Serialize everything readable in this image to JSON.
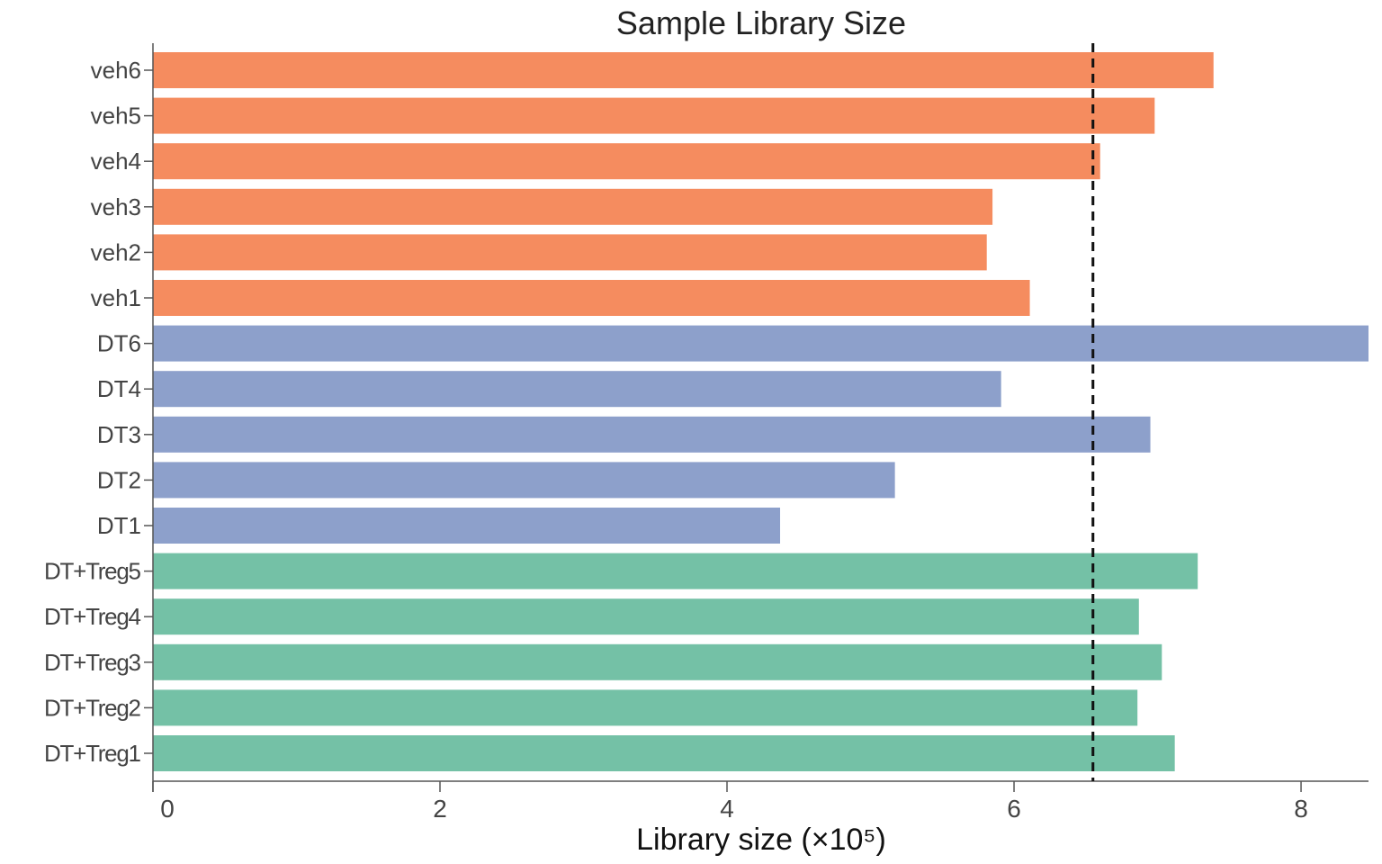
{
  "chart_data": {
    "type": "bar",
    "orientation": "horizontal",
    "title": "Sample Library Size",
    "xlabel": "Library size (×10⁵)",
    "ylabel": "",
    "xlim": [
      0,
      8.47
    ],
    "xticks": [
      "0",
      "2",
      "4",
      "6",
      "8"
    ],
    "grid": false,
    "legend": "none",
    "categories": [
      "veh6",
      "veh5",
      "veh4",
      "veh3",
      "veh2",
      "veh1",
      "DT6",
      "DT4",
      "DT3",
      "DT2",
      "DT1",
      "DT+Treg5",
      "DT+Treg4",
      "DT+Treg3",
      "DT+Treg2",
      "DT+Treg1"
    ],
    "values": [
      7.39,
      6.98,
      6.6,
      5.85,
      5.81,
      6.11,
      8.47,
      5.91,
      6.95,
      5.17,
      4.37,
      7.28,
      6.87,
      7.03,
      6.86,
      7.12
    ],
    "bar_colors": [
      "#f58c5f",
      "#f58c5f",
      "#f58c5f",
      "#f58c5f",
      "#f58c5f",
      "#f58c5f",
      "#8da0cb",
      "#8da0cb",
      "#8da0cb",
      "#8da0cb",
      "#8da0cb",
      "#74c1a6",
      "#74c1a6",
      "#74c1a6",
      "#74c1a6",
      "#74c1a6"
    ],
    "reference_line": {
      "value": 6.55,
      "style": "dashed",
      "color": "#111111"
    }
  }
}
